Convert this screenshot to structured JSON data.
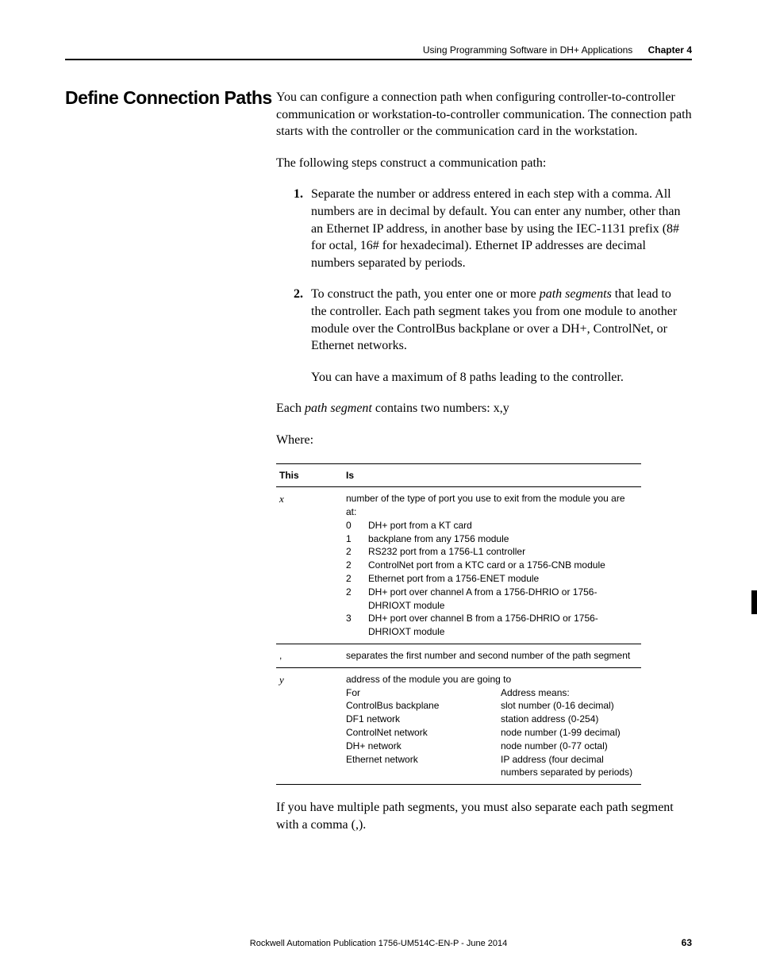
{
  "header": {
    "title": "Using Programming Software in DH+ Applications",
    "chapter": "Chapter 4"
  },
  "heading": "Define Connection Paths",
  "intro": "You can configure a connection path when configuring controller-to-controller communication or workstation-to-controller communication. The connection path starts with the controller or the communication card in the workstation.",
  "steps_intro": "The following steps construct a communication path:",
  "steps": {
    "one_num": "1.",
    "one": "Separate the number or address entered in each step with a comma. All numbers are in decimal by default. You can enter any number, other than an Ethernet IP address, in another base by using the IEC-1131 prefix (8# for octal, 16# for hexadecimal). Ethernet IP addresses are decimal numbers separated by periods.",
    "two_num": "2.",
    "two_a": "To construct the path, you enter one or more ",
    "two_em": "path segments",
    "two_b": " that lead to the controller. Each path segment takes you from one module to another module over the ControlBus backplane or over a DH+, ControlNet, or Ethernet networks.",
    "two_sub": "You can have a maximum of 8 paths leading to the controller."
  },
  "segment_intro_a": "Each ",
  "segment_intro_em": "path segment",
  "segment_intro_b": " contains two numbers: x,y",
  "where": "Where:",
  "table": {
    "h1": "This",
    "h2": "Is",
    "x": "x",
    "x_desc": "number of the type of port you use to exit from the module you are at:",
    "ports": [
      {
        "n": "0",
        "d": "DH+ port from a KT card"
      },
      {
        "n": "1",
        "d": "backplane from any 1756 module"
      },
      {
        "n": "2",
        "d": "RS232 port from a 1756-L1 controller"
      },
      {
        "n": "2",
        "d": "ControlNet port from a KTC card or a 1756-CNB module"
      },
      {
        "n": "2",
        "d": "Ethernet port from a 1756-ENET module"
      },
      {
        "n": "2",
        "d": "DH+ port over channel A from a 1756-DHRIO or 1756-DHRIOXT module"
      },
      {
        "n": "3",
        "d": "DH+ port over channel B from a 1756-DHRIO or 1756-DHRIOXT module"
      }
    ],
    "comma": ",",
    "comma_desc": "separates the first number and second number of the path segment",
    "y": "y",
    "y_desc": "address of the module you are going to",
    "addr_h1": "For",
    "addr_h2": "Address means:",
    "addrs": [
      {
        "f": "ControlBus backplane",
        "m": "slot number (0-16 decimal)"
      },
      {
        "f": "DF1 network",
        "m": "station address (0-254)"
      },
      {
        "f": "ControlNet network",
        "m": "node number (1-99 decimal)"
      },
      {
        "f": "DH+ network",
        "m": "node number (0-77 octal)"
      },
      {
        "f": "Ethernet network",
        "m": "IP address (four decimal numbers separated by periods)"
      }
    ]
  },
  "outro": "If you have multiple path segments, you must also separate each path segment with a comma (,).",
  "footer": "Rockwell Automation Publication 1756-UM514C-EN-P - June 2014",
  "page": "63"
}
